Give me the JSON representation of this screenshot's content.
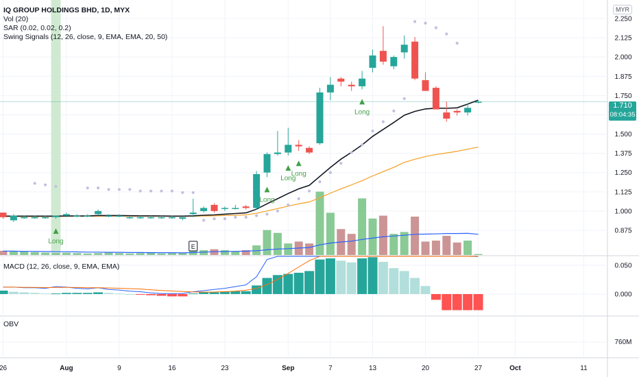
{
  "header": {
    "symbol_line": "IQ GROUP HOLDINGS BHD, 1D, MYX",
    "indicators": [
      "Vol (20)",
      "SAR (0.02, 0.02, 0.2)",
      "Swing Signals (12, 26, close, 9, EMA, EMA, 20, 50)"
    ],
    "currency": "MYR"
  },
  "pane_labels": {
    "macd": "MACD (12, 26, close, 9, EMA, EMA)",
    "obv": "OBV"
  },
  "last_price": {
    "value": "1.710",
    "countdown": "08:04:35"
  },
  "colors": {
    "up": "#26a69a",
    "down": "#ef5350",
    "ema20": "#131722",
    "ema50": "#f7a632",
    "vol_ma": "#2962ff",
    "sar": "#c3bfdf",
    "signal": "#43a047",
    "highlight": "#c8e6c9"
  },
  "chart_data": [
    {
      "type": "candlestick",
      "title": "IQ GROUP HOLDINGS BHD, 1D, MYX",
      "x": [
        "07-26",
        "07-27",
        "07-28",
        "07-29",
        "07-30",
        "08-02",
        "08-03",
        "08-04",
        "08-05",
        "08-06",
        "08-09",
        "08-10",
        "08-11",
        "08-12",
        "08-13",
        "08-16",
        "08-17",
        "08-18",
        "08-19",
        "08-20",
        "08-23",
        "08-24",
        "08-25",
        "08-26",
        "08-27",
        "08-30",
        "09-01",
        "09-02",
        "09-03",
        "09-06",
        "09-07",
        "09-08",
        "09-09",
        "09-10",
        "09-13",
        "09-14",
        "09-15",
        "09-16",
        "09-17",
        "09-20",
        "09-21",
        "09-22",
        "09-23",
        "09-24",
        "09-27",
        "09-28"
      ],
      "ohlc": [
        [
          0.99,
          0.99,
          0.95,
          0.96
        ],
        [
          0.94,
          0.98,
          0.93,
          0.97
        ],
        [
          0.96,
          0.97,
          0.95,
          0.96
        ],
        [
          0.96,
          0.97,
          0.95,
          0.96
        ],
        [
          0.96,
          0.97,
          0.95,
          0.96
        ],
        [
          0.96,
          0.97,
          0.95,
          0.97
        ],
        [
          0.97,
          0.99,
          0.96,
          0.98
        ],
        [
          0.97,
          0.98,
          0.96,
          0.97
        ],
        [
          0.97,
          0.98,
          0.96,
          0.97
        ],
        [
          0.98,
          1.01,
          0.97,
          1.0
        ],
        [
          0.97,
          0.98,
          0.96,
          0.97
        ],
        [
          0.97,
          0.98,
          0.96,
          0.97
        ],
        [
          0.96,
          0.97,
          0.95,
          0.96
        ],
        [
          0.96,
          0.97,
          0.95,
          0.96
        ],
        [
          0.96,
          0.97,
          0.95,
          0.96
        ],
        [
          0.96,
          0.97,
          0.95,
          0.96
        ],
        [
          0.96,
          0.97,
          0.95,
          0.96
        ],
        [
          0.95,
          0.96,
          0.94,
          0.96
        ],
        [
          0.98,
          1.08,
          0.96,
          0.99
        ],
        [
          1.0,
          1.03,
          0.99,
          1.02
        ],
        [
          1.04,
          1.05,
          0.99,
          1.0
        ],
        [
          1.02,
          1.03,
          1.0,
          1.02
        ],
        [
          1.02,
          1.04,
          1.01,
          1.02
        ],
        [
          1.03,
          1.04,
          1.01,
          1.02
        ],
        [
          1.02,
          1.26,
          1.01,
          1.24
        ],
        [
          1.25,
          1.38,
          1.22,
          1.37
        ],
        [
          1.37,
          1.52,
          1.36,
          1.38
        ],
        [
          1.38,
          1.54,
          1.36,
          1.43
        ],
        [
          1.43,
          1.46,
          1.39,
          1.42
        ],
        [
          1.41,
          1.42,
          1.37,
          1.38
        ],
        [
          1.44,
          1.8,
          1.43,
          1.77
        ],
        [
          1.77,
          1.87,
          1.72,
          1.82
        ],
        [
          1.86,
          1.87,
          1.81,
          1.84
        ],
        [
          1.82,
          1.84,
          1.78,
          1.81
        ],
        [
          1.81,
          1.91,
          1.79,
          1.86
        ],
        [
          1.93,
          2.05,
          1.9,
          2.01
        ],
        [
          2.04,
          2.2,
          1.95,
          1.97
        ],
        [
          1.94,
          2.01,
          1.92,
          2.0
        ],
        [
          2.03,
          2.14,
          1.99,
          2.08
        ],
        [
          2.1,
          2.13,
          1.85,
          1.86
        ],
        [
          1.85,
          1.9,
          1.78,
          1.78
        ],
        [
          1.8,
          1.81,
          1.67,
          1.66
        ],
        [
          1.64,
          1.71,
          1.58,
          1.6
        ],
        [
          1.65,
          1.66,
          1.62,
          1.64
        ],
        [
          1.64,
          1.7,
          1.62,
          1.67
        ],
        [
          1.71,
          1.72,
          1.7,
          1.71
        ]
      ],
      "ema20": [
        0.967,
        0.967,
        0.967,
        0.967,
        0.967,
        0.967,
        0.968,
        0.968,
        0.968,
        0.971,
        0.971,
        0.971,
        0.97,
        0.969,
        0.969,
        0.968,
        0.967,
        0.967,
        0.969,
        0.973,
        0.975,
        0.98,
        0.984,
        0.988,
        1.012,
        1.047,
        1.08,
        1.114,
        1.144,
        1.167,
        1.225,
        1.283,
        1.337,
        1.382,
        1.429,
        1.485,
        1.53,
        1.575,
        1.622,
        1.647,
        1.663,
        1.668,
        1.667,
        1.67,
        1.694,
        1.72
      ],
      "ema50": [
        0.965,
        0.965,
        0.965,
        0.965,
        0.965,
        0.965,
        0.966,
        0.966,
        0.966,
        0.967,
        0.967,
        0.967,
        0.967,
        0.967,
        0.967,
        0.967,
        0.966,
        0.966,
        0.967,
        0.968,
        0.969,
        0.971,
        0.973,
        0.975,
        0.986,
        1.001,
        1.016,
        1.032,
        1.047,
        1.059,
        1.087,
        1.116,
        1.144,
        1.17,
        1.197,
        1.228,
        1.256,
        1.284,
        1.316,
        1.336,
        1.354,
        1.367,
        1.377,
        1.388,
        1.402,
        1.415
      ],
      "sar": [
        null,
        null,
        null,
        1.18,
        1.17,
        1.16,
        null,
        null,
        1.15,
        1.15,
        1.14,
        1.14,
        1.14,
        1.13,
        1.13,
        1.13,
        1.13,
        1.12,
        1.12,
        0.94,
        0.95,
        0.95,
        0.96,
        0.96,
        0.97,
        0.98,
        1.0,
        1.04,
        1.08,
        1.13,
        1.19,
        1.25,
        1.31,
        1.38,
        1.43,
        1.52,
        1.58,
        1.65,
        1.73,
        2.23,
        2.22,
        2.19,
        2.15,
        2.09,
        null,
        null
      ],
      "signals": [
        {
          "x": "08-02",
          "label": "Long"
        },
        {
          "x": "08-30",
          "label": "Long"
        },
        {
          "x": "09-02",
          "label": "Long"
        },
        {
          "x": "09-03",
          "label": "Long"
        },
        {
          "x": "09-13",
          "label": "Long"
        }
      ],
      "signal_text": "Long",
      "event_marker": "E",
      "ylim": [
        0.82,
        2.28
      ],
      "y_ticks": [
        "2.250",
        "2.125",
        "2.000",
        "1.875",
        "1.750",
        "1.625",
        "1.500",
        "1.375",
        "1.250",
        "1.125",
        "1.000",
        "0.875"
      ],
      "x_ticks": [
        "26",
        "Aug",
        "9",
        "16",
        "23",
        "Sep",
        "7",
        "13",
        "20",
        "27",
        "Oct",
        "11"
      ]
    },
    {
      "type": "bar",
      "title": "Vol (20)",
      "volume": [
        0.22,
        0.2,
        0.18,
        0.15,
        0.12,
        0.1,
        0.12,
        0.1,
        0.08,
        0.1,
        0.12,
        0.1,
        0.08,
        0.1,
        0.15,
        0.08,
        0.1,
        0.1,
        0.6,
        0.25,
        0.3,
        0.25,
        0.2,
        0.25,
        0.5,
        1.3,
        1.15,
        0.6,
        0.7,
        0.6,
        3.3,
        2.2,
        1.35,
        1.1,
        2.95,
        1.9,
        2.05,
        1.1,
        1.2,
        2.0,
        0.7,
        0.75,
        1.0,
        0.65,
        0.75,
        0.05
      ],
      "ma": [
        0.2,
        0.2,
        0.19,
        0.19,
        0.18,
        0.17,
        0.17,
        0.16,
        0.15,
        0.15,
        0.14,
        0.14,
        0.13,
        0.13,
        0.12,
        0.12,
        0.12,
        0.11,
        0.13,
        0.15,
        0.17,
        0.18,
        0.19,
        0.2,
        0.22,
        0.27,
        0.31,
        0.33,
        0.36,
        0.39,
        0.53,
        0.62,
        0.68,
        0.72,
        0.81,
        0.88,
        0.95,
        0.99,
        1.03,
        1.08,
        1.09,
        1.1,
        1.12,
        1.12,
        1.13,
        1.08
      ]
    },
    {
      "type": "bar",
      "title": "MACD (12, 26, close, 9, EMA, EMA)",
      "hist": [
        0.006,
        0.004,
        0.003,
        0.002,
        0.001,
        0.001,
        0.002,
        0.002,
        0.002,
        0.003,
        0.002,
        0.001,
        0.0,
        -0.001,
        -0.002,
        -0.003,
        -0.004,
        -0.004,
        0.001,
        0.003,
        0.003,
        0.004,
        0.005,
        0.005,
        0.015,
        0.028,
        0.033,
        0.035,
        0.037,
        0.04,
        0.06,
        0.062,
        0.058,
        0.055,
        0.062,
        0.064,
        0.056,
        0.045,
        0.04,
        0.028,
        0.014,
        -0.01,
        -0.028,
        -0.028,
        -0.028,
        -0.028
      ],
      "macd": [
        0.012,
        0.012,
        0.011,
        0.011,
        0.01,
        0.013,
        0.012,
        0.01,
        0.009,
        0.011,
        0.008,
        0.007,
        0.005,
        0.004,
        0.002,
        0.001,
        0.001,
        0.001,
        0.004,
        0.006,
        0.008,
        0.01,
        0.013,
        0.016,
        0.03,
        0.06,
        0.082,
        0.098,
        0.106,
        0.108,
        0.14,
        0.165,
        0.18,
        0.185,
        0.192,
        0.2,
        0.205,
        0.203,
        0.205,
        0.19,
        0.17,
        0.14,
        0.11,
        0.09,
        0.075,
        0.065
      ],
      "ylim": [
        -0.02,
        0.06
      ],
      "y_ticks": [
        "0.050",
        "0.000"
      ]
    },
    {
      "type": "line",
      "title": "OBV",
      "y_ticks": [
        "760M"
      ]
    }
  ]
}
